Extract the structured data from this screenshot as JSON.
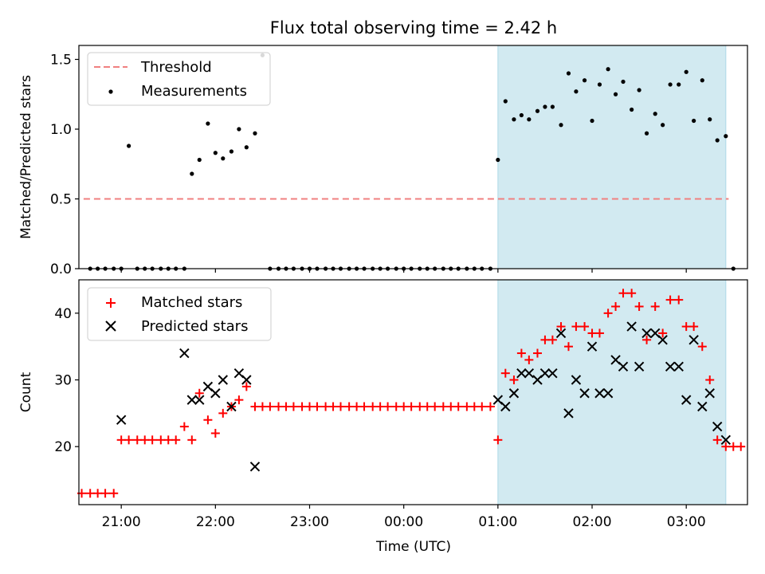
{
  "chart_data": [
    {
      "type": "scatter",
      "title": "Flux total observing time = 2.42 h",
      "xlabel": "",
      "ylabel": "Matched/Predicted stars",
      "xlim": [
        -0.45,
        6.65
      ],
      "ylim": [
        0,
        1.6
      ],
      "yticks": [
        0.0,
        0.5,
        1.0,
        1.5
      ],
      "ytick_labels": [
        "0.0",
        "0.5",
        "1.0",
        "1.5"
      ],
      "grid": false,
      "legend_position": "upper left",
      "shaded_interval": {
        "x": [
          4.0,
          6.42
        ],
        "color": "#add8e6"
      },
      "threshold": {
        "name": "Threshold",
        "y": 0.5,
        "x_range": [
          -0.4,
          6.45
        ],
        "color": "#f08080",
        "style": "dashed"
      },
      "series": [
        {
          "name": "Measurements",
          "color": "#000000",
          "marker": "dot",
          "x": [
            -0.33,
            -0.25,
            -0.17,
            -0.08,
            0.0,
            0.08,
            0.17,
            0.25,
            0.33,
            0.42,
            0.5,
            0.58,
            0.67,
            0.75,
            0.83,
            0.92,
            1.0,
            1.08,
            1.17,
            1.25,
            1.33,
            1.42,
            1.5,
            1.58,
            1.67,
            1.75,
            1.83,
            1.92,
            2.0,
            2.08,
            2.17,
            2.25,
            2.33,
            2.42,
            2.5,
            2.58,
            2.67,
            2.75,
            2.83,
            2.92,
            3.0,
            3.08,
            3.17,
            3.25,
            3.33,
            3.42,
            3.5,
            3.58,
            3.67,
            3.75,
            3.83,
            3.92,
            4.0,
            4.08,
            4.17,
            4.25,
            4.33,
            4.42,
            4.5,
            4.58,
            4.67,
            4.75,
            4.83,
            4.92,
            5.0,
            5.08,
            5.17,
            5.25,
            5.33,
            5.42,
            5.5,
            5.58,
            5.67,
            5.75,
            5.83,
            5.92,
            6.0,
            6.08,
            6.17,
            6.25,
            6.33,
            6.42,
            6.5
          ],
          "y": [
            0.0,
            0.0,
            0.0,
            0.0,
            0.0,
            0.88,
            0.0,
            0.0,
            0.0,
            0.0,
            0.0,
            0.0,
            0.0,
            0.68,
            0.78,
            1.04,
            0.83,
            0.79,
            0.84,
            1.0,
            0.87,
            0.97,
            1.53,
            0.0,
            0.0,
            0.0,
            0.0,
            0.0,
            0.0,
            0.0,
            0.0,
            0.0,
            0.0,
            0.0,
            0.0,
            0.0,
            0.0,
            0.0,
            0.0,
            0.0,
            0.0,
            0.0,
            0.0,
            0.0,
            0.0,
            0.0,
            0.0,
            0.0,
            0.0,
            0.0,
            0.0,
            0.0,
            0.78,
            1.2,
            1.07,
            1.1,
            1.07,
            1.13,
            1.16,
            1.16,
            1.03,
            1.4,
            1.27,
            1.35,
            1.06,
            1.32,
            1.43,
            1.25,
            1.34,
            1.14,
            1.28,
            0.97,
            1.11,
            1.03,
            1.32,
            1.32,
            1.41,
            1.06,
            1.35,
            1.07,
            0.92,
            0.95,
            0.0
          ]
        }
      ]
    },
    {
      "type": "scatter",
      "title": "",
      "xlabel": "Time (UTC)",
      "ylabel": "Count",
      "xlim": [
        -0.45,
        6.65
      ],
      "ylim": [
        11.3,
        45.0
      ],
      "yticks": [
        20,
        30,
        40
      ],
      "ytick_labels": [
        "20",
        "30",
        "40"
      ],
      "xticks": [
        0,
        1,
        2,
        3,
        4,
        5,
        6
      ],
      "xtick_labels": [
        "21:00",
        "22:00",
        "23:00",
        "00:00",
        "01:00",
        "02:00",
        "03:00"
      ],
      "grid": false,
      "legend_position": "upper left",
      "shaded_interval": {
        "x": [
          4.0,
          6.42
        ],
        "color": "#add8e6"
      },
      "series": [
        {
          "name": "Matched stars",
          "color": "#ff0000",
          "marker": "plus",
          "x": [
            -0.42,
            -0.33,
            -0.25,
            -0.17,
            -0.08,
            0.0,
            0.08,
            0.17,
            0.25,
            0.33,
            0.42,
            0.5,
            0.58,
            0.67,
            0.75,
            0.83,
            0.92,
            1.0,
            1.08,
            1.17,
            1.25,
            1.33,
            1.42,
            1.5,
            1.58,
            1.67,
            1.75,
            1.83,
            1.92,
            2.0,
            2.08,
            2.17,
            2.25,
            2.33,
            2.42,
            2.5,
            2.58,
            2.67,
            2.75,
            2.83,
            2.92,
            3.0,
            3.08,
            3.17,
            3.25,
            3.33,
            3.42,
            3.5,
            3.58,
            3.67,
            3.75,
            3.83,
            3.92,
            4.0,
            4.08,
            4.17,
            4.25,
            4.33,
            4.42,
            4.5,
            4.58,
            4.67,
            4.75,
            4.83,
            4.92,
            5.0,
            5.08,
            5.17,
            5.25,
            5.33,
            5.42,
            5.5,
            5.58,
            5.67,
            5.75,
            5.83,
            5.92,
            6.0,
            6.08,
            6.17,
            6.25,
            6.33,
            6.42,
            6.5,
            6.58
          ],
          "y": [
            13,
            13,
            13,
            13,
            13,
            21,
            21,
            21,
            21,
            21,
            21,
            21,
            21,
            23,
            21,
            28,
            24,
            22,
            25,
            26,
            27,
            29,
            26,
            26,
            26,
            26,
            26,
            26,
            26,
            26,
            26,
            26,
            26,
            26,
            26,
            26,
            26,
            26,
            26,
            26,
            26,
            26,
            26,
            26,
            26,
            26,
            26,
            26,
            26,
            26,
            26,
            26,
            26,
            21,
            31,
            30,
            34,
            33,
            34,
            36,
            36,
            38,
            35,
            38,
            38,
            37,
            37,
            40,
            41,
            43,
            43,
            41,
            36,
            41,
            37,
            42,
            42,
            38,
            38,
            35,
            30,
            21,
            20,
            20,
            20
          ]
        },
        {
          "name": "Predicted stars",
          "color": "#000000",
          "marker": "x",
          "x": [
            0.0,
            0.67,
            0.75,
            0.83,
            0.92,
            1.0,
            1.08,
            1.17,
            1.25,
            1.33,
            1.42,
            4.0,
            4.08,
            4.17,
            4.25,
            4.33,
            4.42,
            4.5,
            4.58,
            4.67,
            4.75,
            4.83,
            4.92,
            5.0,
            5.08,
            5.17,
            5.25,
            5.33,
            5.42,
            5.5,
            5.58,
            5.67,
            5.75,
            5.83,
            5.92,
            6.0,
            6.08,
            6.17,
            6.25,
            6.33,
            6.42
          ],
          "y": [
            24,
            34,
            27,
            27,
            29,
            28,
            30,
            26,
            31,
            30,
            17,
            27,
            26,
            28,
            31,
            31,
            30,
            31,
            31,
            37,
            25,
            30,
            28,
            35,
            28,
            28,
            33,
            32,
            38,
            32,
            37,
            37,
            36,
            32,
            32,
            27,
            36,
            26,
            28,
            23,
            21
          ]
        }
      ]
    }
  ]
}
